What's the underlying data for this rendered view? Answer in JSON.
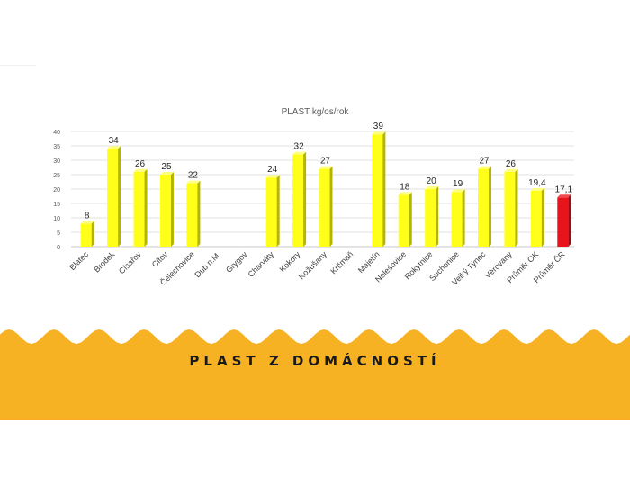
{
  "chart_data": {
    "type": "bar",
    "title": "PLAST kg/os/rok",
    "categories": [
      "Blatec",
      "Brodek",
      "Císařov",
      "Citov",
      "Čelechovice",
      "Dub n.M.",
      "Grygov",
      "Charváty",
      "Kokory",
      "Kožušany",
      "Krčmaň",
      "Majetín",
      "Nelešovice",
      "Rokytnice",
      "Suchonice",
      "Velký Týnec",
      "Věrovany",
      "Průměr OK",
      "Průměr ČR"
    ],
    "values": [
      8,
      34,
      26,
      25,
      22,
      null,
      null,
      24,
      32,
      27,
      null,
      39,
      18,
      20,
      19,
      27,
      26,
      19.4,
      17.1
    ],
    "data_labels": [
      "8",
      "34",
      "26",
      "25",
      "22",
      "",
      "",
      "24",
      "32",
      "27",
      "",
      "39",
      "18",
      "20",
      "19",
      "27",
      "26",
      "19,4",
      "17,1"
    ],
    "yticks": [
      "0",
      "5",
      "10",
      "15",
      "20",
      "25",
      "30",
      "35",
      "40"
    ],
    "ylim": [
      0,
      40
    ],
    "grid": true,
    "colors": {
      "default": "#ffff1a",
      "highlight": "#e8141b"
    },
    "highlight_category": "Průměr ČR"
  },
  "banner": {
    "title": "PLAST Z DOMÁCNOSTÍ",
    "color": "#f7b224"
  }
}
